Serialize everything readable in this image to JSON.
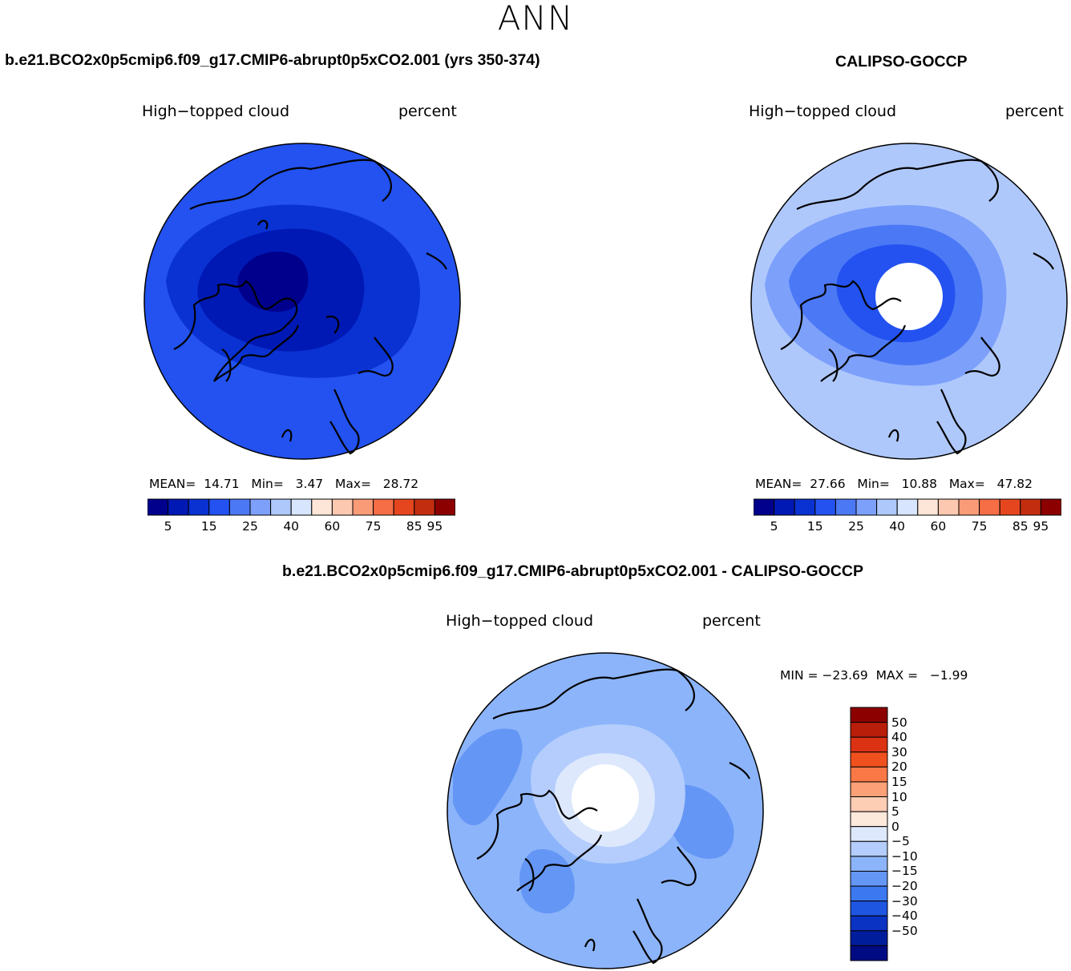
{
  "page": {
    "title": "ANN"
  },
  "panels": [
    {
      "id": "model",
      "case_title": "b.e21.BCO2x0p5cmip6.f09_g17.CMIP6-abrupt0p5xCO2.001 (yrs 350-374)",
      "variable": "High−topped cloud",
      "units": "percent",
      "stats": {
        "mean_label": "MEAN=",
        "mean": "14.71",
        "min_label": "Min=",
        "min": "3.47",
        "max_label": "Max=",
        "max": "28.72"
      }
    },
    {
      "id": "obs",
      "case_title": "CALIPSO-GOCCP",
      "variable": "High−topped cloud",
      "units": "percent",
      "stats": {
        "mean_label": "MEAN=",
        "mean": "27.66",
        "min_label": "Min=",
        "min": "10.88",
        "max_label": "Max=",
        "max": "47.82"
      }
    },
    {
      "id": "diff",
      "case_title": "b.e21.BCO2x0p5cmip6.f09_g17.CMIP6-abrupt0p5xCO2.001 - CALIPSO-GOCCP",
      "variable": "High−topped cloud",
      "units": "percent",
      "stats_text": "MIN = −23.69  MAX =   −1.99"
    }
  ],
  "colorbar_abs": {
    "colors": [
      "#00008c",
      "#0019b4",
      "#0a32d2",
      "#2352f0",
      "#4b78f5",
      "#7da0fa",
      "#afc8fc",
      "#d7e6fe",
      "#fde6d7",
      "#fcc8af",
      "#fa9b78",
      "#f56e46",
      "#e6461e",
      "#c32d0f",
      "#8c0000"
    ],
    "labels": [
      "5",
      "15",
      "25",
      "40",
      "60",
      "75",
      "85",
      "95"
    ]
  },
  "colorbar_diff": {
    "colors": [
      "#8c0000",
      "#b91e0a",
      "#dc3214",
      "#f0501e",
      "#fa7846",
      "#fca078",
      "#fdcdb4",
      "#fde8dc",
      "#dde8fc",
      "#b4cdfc",
      "#8cb4fa",
      "#6496f5",
      "#3c78f0",
      "#1e55e1",
      "#0a32c3",
      "#001e9b",
      "#000a82"
    ],
    "labels": [
      "50",
      "40",
      "30",
      "20",
      "15",
      "10",
      "5",
      "0",
      "−5",
      "−10",
      "−15",
      "−20",
      "−30",
      "−40",
      "−50"
    ]
  },
  "map_colors": {
    "outer": "#2352f0",
    "mid": "#0a32d2",
    "inner": "#0019b4",
    "core": "#00008c",
    "obs_outer": "#afc8fc",
    "obs_mid": "#7da0fa",
    "obs_inner": "#4b78f5",
    "obs_core": "#2352f0",
    "diff_outer": "#8cb4fa",
    "diff_mid": "#b4cdfc",
    "diff_inner": "#dde8fc",
    "diff_patch": "#6496f5"
  }
}
